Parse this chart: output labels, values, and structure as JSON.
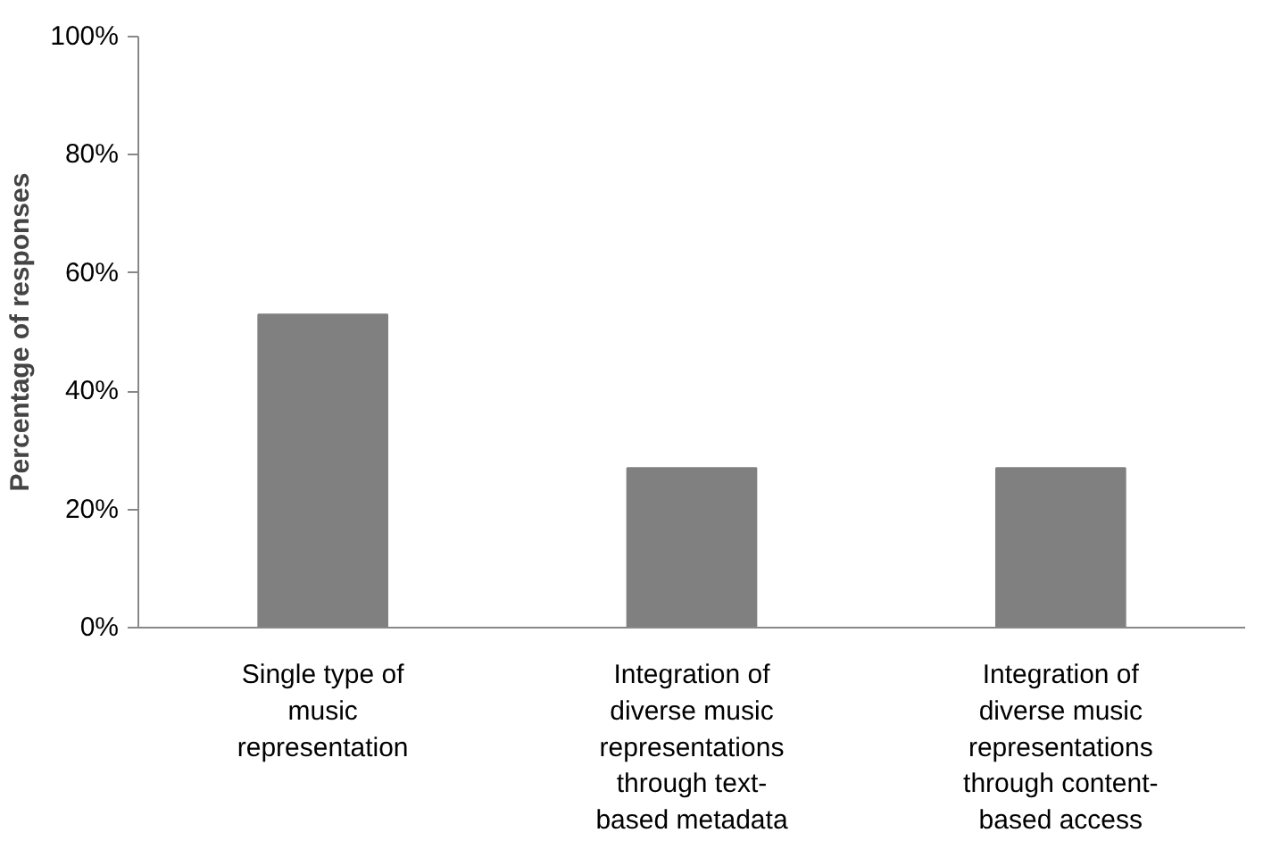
{
  "chart_data": {
    "type": "bar",
    "ylabel": "Percentage of responses",
    "categories": [
      "Single type of music representation",
      "Integration of diverse music representations through text-based metadata",
      "Integration of diverse music representations through content-based access"
    ],
    "values": [
      53,
      27,
      27
    ],
    "color": "#808080",
    "ylim": [
      0,
      100
    ],
    "yticks": [
      {
        "value": 0,
        "label": "0%"
      },
      {
        "value": 20,
        "label": "20%"
      },
      {
        "value": 40,
        "label": "40%"
      },
      {
        "value": 60,
        "label": "60%"
      },
      {
        "value": 80,
        "label": "80%"
      },
      {
        "value": 100,
        "label": "100%"
      }
    ],
    "grid": false
  }
}
